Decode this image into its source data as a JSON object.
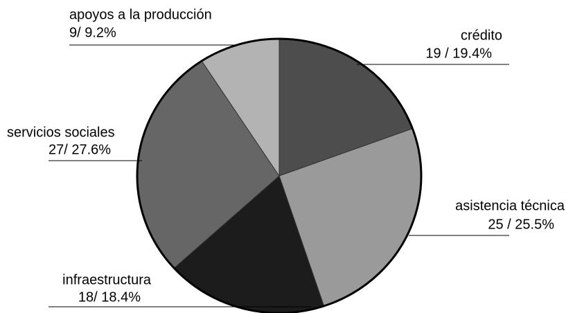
{
  "chart_data": {
    "type": "pie",
    "categories": [
      "crédito",
      "asistencia técnica",
      "infraestructura",
      "servicios sociales",
      "apoyos a la producción"
    ],
    "values": [
      19,
      25,
      18,
      27,
      9
    ],
    "value_labels": [
      "19 / 19.4%",
      "25 / 25.5%",
      "18/ 18.4%",
      "27/ 27.6%",
      "9/ 9.2%"
    ],
    "colors": [
      "#4d4d4d",
      "#9a9a9a",
      "#1c1c1c",
      "#666666",
      "#b3b3b3"
    ]
  }
}
